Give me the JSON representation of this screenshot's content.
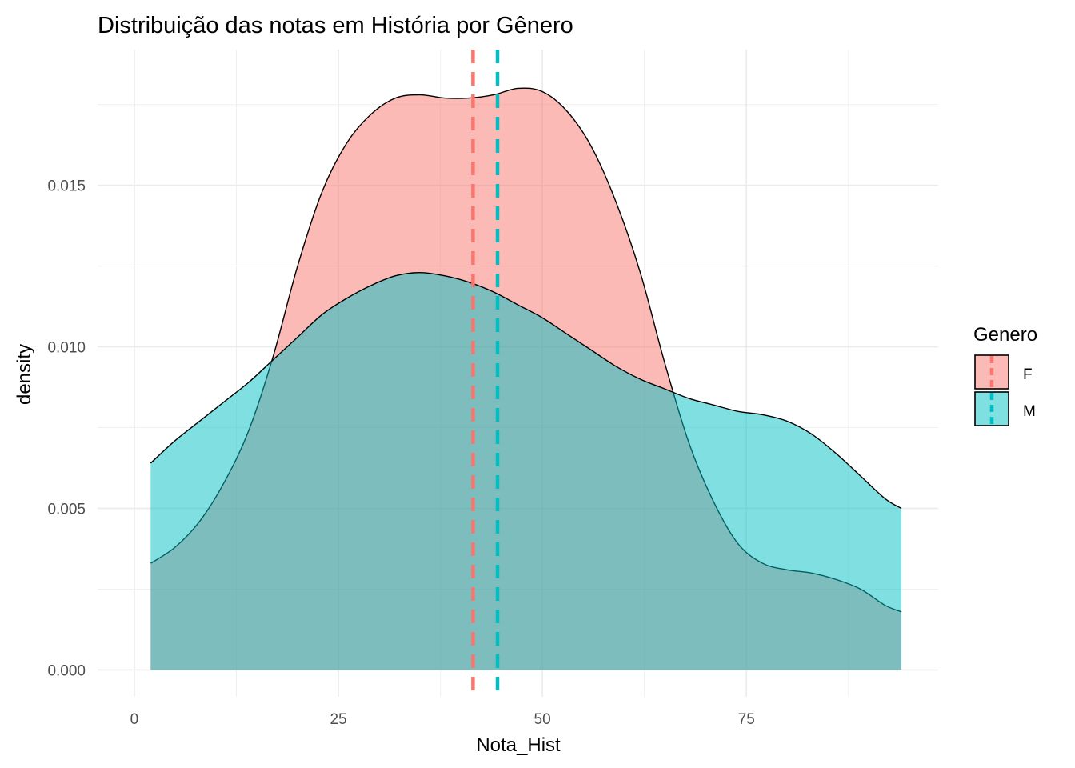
{
  "chart_data": {
    "type": "area",
    "subtype": "density",
    "title": "Distribuição das notas em História por Gênero",
    "xlabel": "Nota_Hist",
    "ylabel": "density",
    "xlim": [
      -4.5,
      98.5
    ],
    "ylim": [
      -0.00083,
      0.0192
    ],
    "x_ticks": [
      0,
      25,
      50,
      75
    ],
    "x_tick_labels": [
      "0",
      "25",
      "50",
      "75"
    ],
    "y_ticks": [
      0,
      0.005,
      0.01,
      0.015
    ],
    "y_tick_labels": [
      "0.000",
      "0.005",
      "0.010",
      "0.015"
    ],
    "grid": true,
    "legend": {
      "title": "Genero",
      "position": "right"
    },
    "series": [
      {
        "name": "F",
        "color": "#F8766D",
        "fill_opacity": 0.5,
        "mean": 41.5,
        "points": [
          [
            2,
            0.0033
          ],
          [
            5,
            0.0038
          ],
          [
            8,
            0.0046
          ],
          [
            11,
            0.0058
          ],
          [
            14,
            0.0074
          ],
          [
            17,
            0.0097
          ],
          [
            20,
            0.0125
          ],
          [
            23,
            0.0148
          ],
          [
            26,
            0.0163
          ],
          [
            29,
            0.0172
          ],
          [
            32,
            0.0177
          ],
          [
            35,
            0.0178
          ],
          [
            38,
            0.0177
          ],
          [
            41,
            0.0177
          ],
          [
            44,
            0.0178
          ],
          [
            47,
            0.018
          ],
          [
            50,
            0.0179
          ],
          [
            53,
            0.0173
          ],
          [
            56,
            0.0162
          ],
          [
            59,
            0.0145
          ],
          [
            62,
            0.0123
          ],
          [
            65,
            0.0095
          ],
          [
            68,
            0.007
          ],
          [
            71,
            0.0052
          ],
          [
            74,
            0.0039
          ],
          [
            77,
            0.0033
          ],
          [
            80,
            0.0031
          ],
          [
            83,
            0.003
          ],
          [
            86,
            0.0028
          ],
          [
            89,
            0.0025
          ],
          [
            92,
            0.002
          ],
          [
            94,
            0.0018
          ]
        ]
      },
      {
        "name": "M",
        "color": "#00BFC4",
        "fill_opacity": 0.5,
        "mean": 44.5,
        "points": [
          [
            2,
            0.0064
          ],
          [
            5,
            0.0071
          ],
          [
            8,
            0.0077
          ],
          [
            11,
            0.0083
          ],
          [
            14,
            0.0089
          ],
          [
            17,
            0.0096
          ],
          [
            20,
            0.0103
          ],
          [
            23,
            0.011
          ],
          [
            26,
            0.0115
          ],
          [
            29,
            0.0119
          ],
          [
            32,
            0.0122
          ],
          [
            35,
            0.0123
          ],
          [
            38,
            0.0122
          ],
          [
            41,
            0.012
          ],
          [
            44,
            0.0117
          ],
          [
            47,
            0.0113
          ],
          [
            50,
            0.0109
          ],
          [
            53,
            0.0104
          ],
          [
            56,
            0.0099
          ],
          [
            59,
            0.0094
          ],
          [
            62,
            0.009
          ],
          [
            65,
            0.0087
          ],
          [
            68,
            0.0084
          ],
          [
            71,
            0.0082
          ],
          [
            74,
            0.008
          ],
          [
            77,
            0.0079
          ],
          [
            80,
            0.0077
          ],
          [
            83,
            0.0073
          ],
          [
            86,
            0.0067
          ],
          [
            89,
            0.006
          ],
          [
            92,
            0.0053
          ],
          [
            94,
            0.005
          ]
        ]
      }
    ]
  }
}
